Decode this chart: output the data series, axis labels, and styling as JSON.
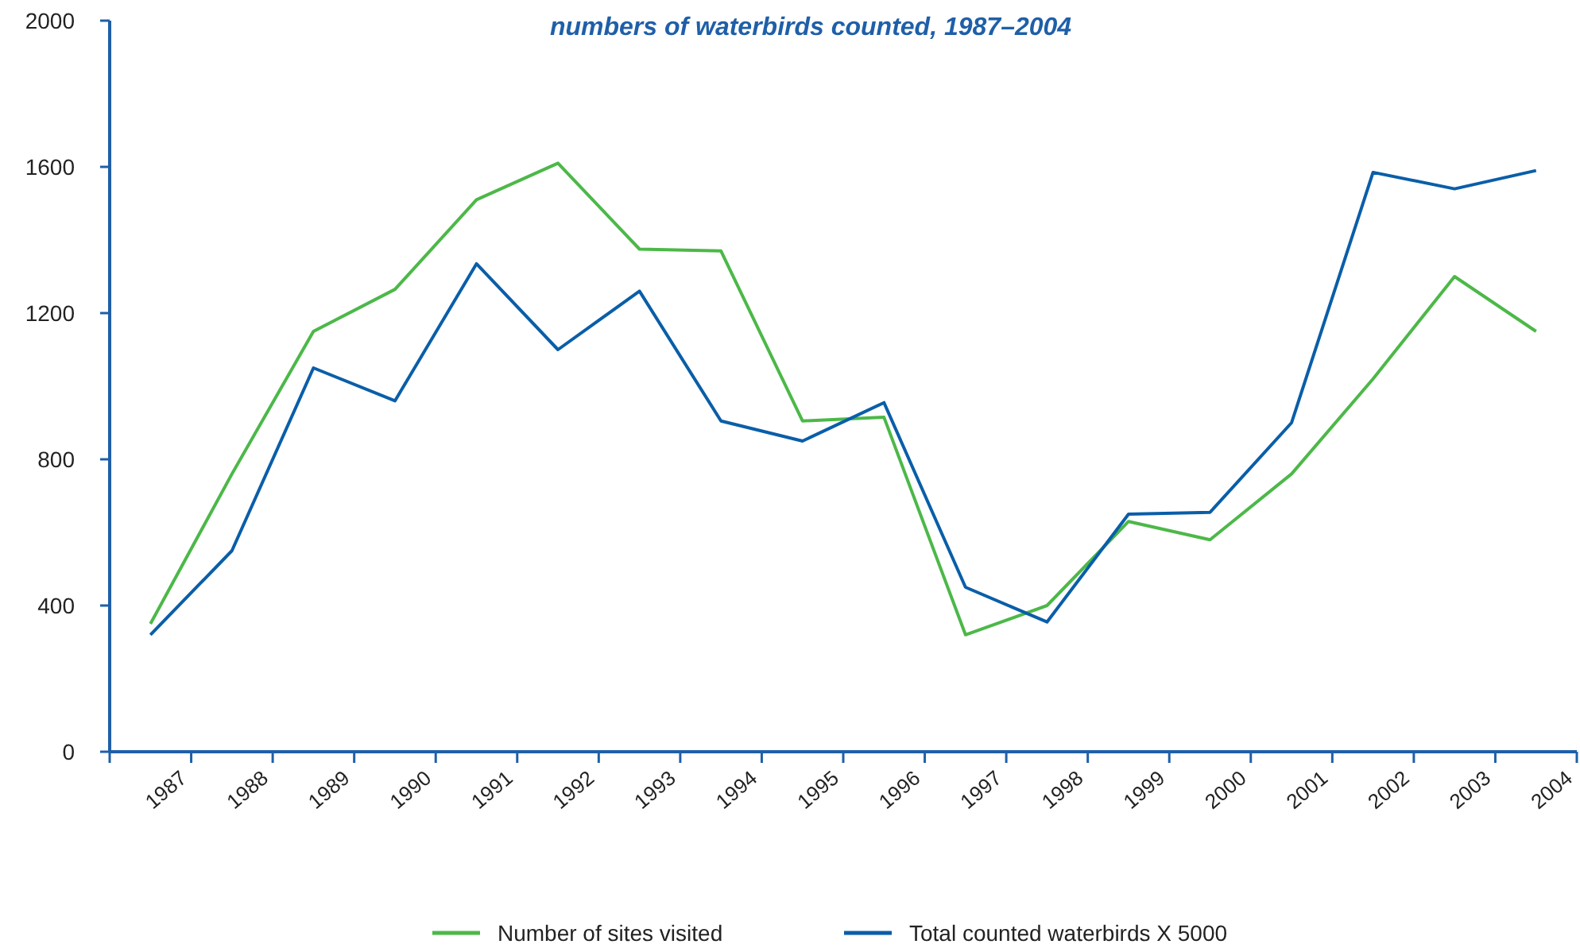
{
  "chart_data": {
    "type": "line",
    "title": "numbers of waterbirds counted, 1987–2004",
    "categories": [
      "1987",
      "1988",
      "1989",
      "1990",
      "1991",
      "1992",
      "1993",
      "1994",
      "1995",
      "1996",
      "1997",
      "1998",
      "1999",
      "2000",
      "2001",
      "2002",
      "2003",
      "2004"
    ],
    "series": [
      {
        "name": "Number of sites visited",
        "color": "#4cb848",
        "values": [
          350,
          760,
          1150,
          1265,
          1510,
          1610,
          1375,
          1370,
          905,
          915,
          320,
          400,
          630,
          580,
          760,
          1020,
          1300,
          1150
        ]
      },
      {
        "name": "Total counted waterbirds X 5000",
        "color": "#0a5ea8",
        "values": [
          320,
          550,
          1050,
          960,
          1335,
          1100,
          1260,
          905,
          850,
          955,
          450,
          355,
          650,
          655,
          900,
          1585,
          1540,
          1590
        ]
      }
    ],
    "ylim": [
      0,
      2000
    ],
    "yticks": [
      0,
      400,
      800,
      1200,
      1600,
      2000
    ],
    "grid": false,
    "legend": "bottom",
    "marker": "none",
    "line_style": "solid"
  }
}
